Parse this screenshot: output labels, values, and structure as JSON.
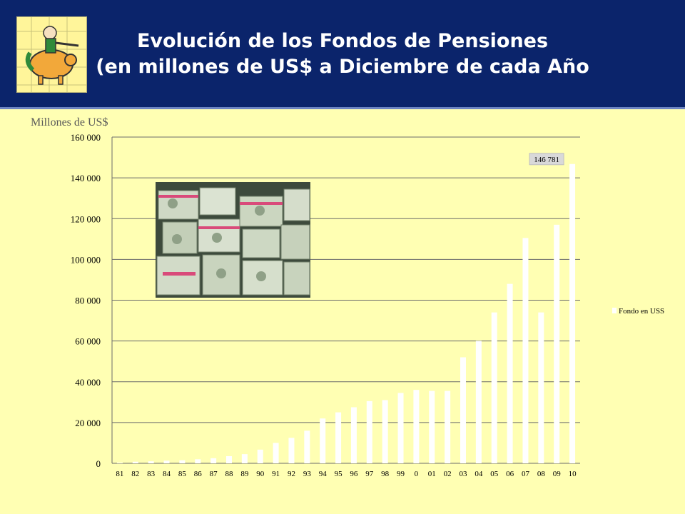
{
  "header": {
    "title_line1": "Evolución de los Fondos de Pensiones",
    "title_line2": "(en millones de US$  a Diciembre de cada Año",
    "background": "#0b246b"
  },
  "chart_data": {
    "type": "bar",
    "ylabel": "Millones de US$",
    "ylim": [
      0,
      160000
    ],
    "yticks": [
      0,
      20000,
      40000,
      60000,
      80000,
      100000,
      120000,
      140000,
      160000
    ],
    "ytick_labels": [
      "0",
      "20 000",
      "40 000",
      "60 000",
      "80 000",
      "100 000",
      "120 000",
      "140 000",
      "160 000"
    ],
    "grid": true,
    "legend_position": "right",
    "categories": [
      "81",
      "82",
      "83",
      "84",
      "85",
      "86",
      "87",
      "88",
      "89",
      "90",
      "91",
      "92",
      "93",
      "94",
      "95",
      "96",
      "97",
      "98",
      "99",
      "0",
      "01",
      "02",
      "03",
      "04",
      "05",
      "06",
      "07",
      "08",
      "09",
      "10"
    ],
    "series": [
      {
        "name": "Fondo en USS",
        "color": "#ffffff",
        "values": [
          300,
          800,
          1000,
          1300,
          1500,
          2000,
          2500,
          3500,
          4500,
          6700,
          10000,
          12500,
          16000,
          22000,
          25000,
          27500,
          30500,
          31000,
          34500,
          36000,
          35500,
          35500,
          52000,
          60000,
          74000,
          88000,
          110500,
          74000,
          117000,
          146781
        ]
      }
    ],
    "annotations": [
      {
        "category": "10",
        "text": "146 781"
      }
    ]
  }
}
